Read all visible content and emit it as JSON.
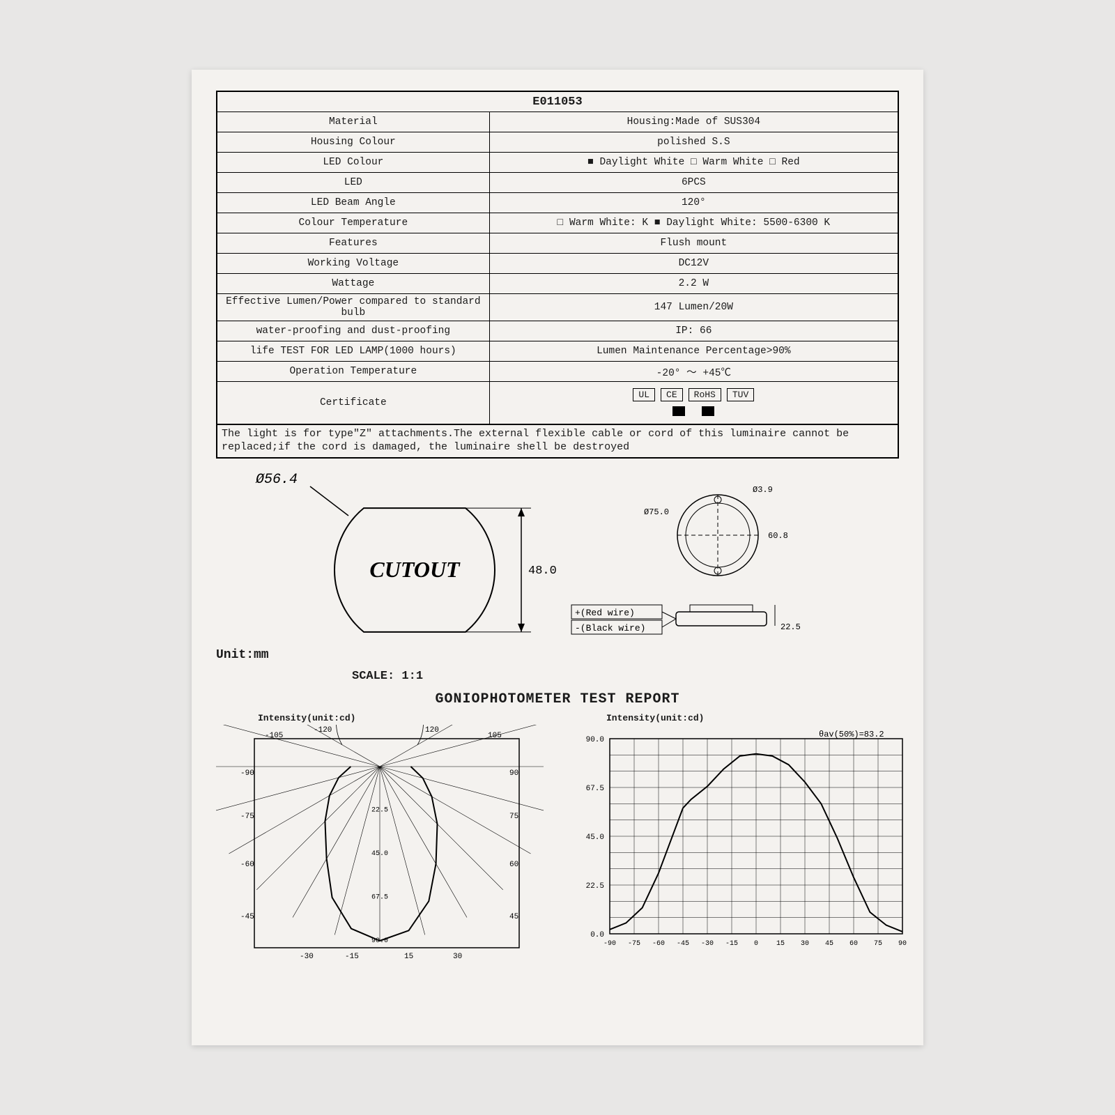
{
  "header": {
    "part_no": "E011053"
  },
  "spec_rows": [
    {
      "label": "Material",
      "value": "Housing:Made of SUS304",
      "type": "plain"
    },
    {
      "label": "Housing Colour",
      "value": "polished S.S",
      "type": "plain"
    },
    {
      "label": "LED Colour",
      "type": "checks",
      "options": [
        {
          "text": "Daylight White",
          "checked": true
        },
        {
          "text": "Warm White",
          "checked": false
        },
        {
          "text": "Red",
          "checked": false
        }
      ]
    },
    {
      "label": "LED",
      "value": "6PCS",
      "type": "plain"
    },
    {
      "label": "LED Beam Angle",
      "value": "120°",
      "type": "plain"
    },
    {
      "label": "Colour Temperature",
      "type": "checks",
      "options": [
        {
          "text": "Warm White:  K",
          "checked": false
        },
        {
          "text": "Daylight White: 5500-6300 K",
          "checked": true
        }
      ]
    },
    {
      "label": "Features",
      "value": "Flush mount",
      "type": "plain"
    },
    {
      "label": "Working Voltage",
      "value": "DC12V",
      "type": "plain"
    },
    {
      "label": "Wattage",
      "value": "2.2 W",
      "type": "plain"
    },
    {
      "label": "Effective Lumen/Power compared to standard bulb",
      "value": "147 Lumen/20W",
      "type": "plain"
    },
    {
      "label": "water-proofing and dust-proofing",
      "value": "IP: 66",
      "type": "plain"
    },
    {
      "label": "life TEST FOR LED LAMP(1000 hours)",
      "value": "Lumen Maintenance Percentage>90%",
      "type": "plain"
    },
    {
      "label": "Operation Temperature",
      "value": "-20° ～ +45℃",
      "type": "plain"
    }
  ],
  "certificate": {
    "label": "Certificate",
    "boxes": [
      "UL",
      "CE",
      "RoHS",
      "TUV"
    ],
    "filled": [
      false,
      true,
      true,
      false
    ]
  },
  "note": "The light is for type\"Z\" attachments.The external flexible cable or cord of this luminaire cannot be replaced;if the cord is damaged, the  luminaire shell be destroyed",
  "cutout": {
    "diameter_label": "Ø56.4",
    "text": "CUTOUT",
    "height_label": "48.0",
    "unit_label": "Unit:mm",
    "scale_label": "SCALE:   1:1"
  },
  "detail": {
    "outer_dia": "Ø75.0",
    "hole_dia": "Ø3.9",
    "inner_h": "60.8",
    "depth": "22.5",
    "wires": [
      {
        "label": "+(Red wire)"
      },
      {
        "label": "-(Black wire)"
      }
    ]
  },
  "gonio": {
    "title": "GONIOPHOTOMETER TEST REPORT",
    "polar": {
      "axis_label": "Intensity(unit:cd)",
      "angles_top": [
        "-105",
        "-120",
        "120",
        "105"
      ],
      "angles_side": [
        "-90",
        "-75",
        "-60",
        "-45",
        "90",
        "75",
        "60",
        "45"
      ],
      "angles_bottom": [
        "-30",
        "-15",
        "15",
        "30"
      ],
      "rings": [
        "22.5",
        "45.0",
        "67.5",
        "90.0"
      ],
      "curve_angles_deg": [
        -90,
        -75,
        -60,
        -45,
        -30,
        -20,
        -10,
        0,
        10,
        20,
        30,
        45,
        60,
        75,
        90
      ],
      "curve_radius": [
        15,
        22,
        30,
        40,
        55,
        72,
        85,
        90,
        86,
        74,
        58,
        42,
        31,
        23,
        16
      ]
    },
    "cartesian": {
      "axis_label": "Intensity(unit:cd)",
      "annotation": "θav(50%)=83.2",
      "x_ticks": [
        "-90",
        "-75",
        "-60",
        "-45",
        "-30",
        "-15",
        "0",
        "15",
        "30",
        "45",
        "60",
        "75",
        "90"
      ],
      "y_ticks": [
        "0.0",
        "22.5",
        "45.0",
        "67.5",
        "90.0"
      ],
      "x": [
        -90,
        -80,
        -70,
        -60,
        -50,
        -45,
        -40,
        -30,
        -20,
        -10,
        0,
        10,
        20,
        30,
        40,
        45,
        50,
        60,
        70,
        80,
        90
      ],
      "y": [
        2,
        5,
        12,
        28,
        48,
        58,
        62,
        68,
        76,
        82,
        83,
        82,
        78,
        70,
        60,
        52,
        44,
        26,
        10,
        4,
        1
      ]
    }
  },
  "style": {
    "ink": "#000000",
    "paper": "#f4f2ef",
    "bg": "#e8e7e6",
    "grid": "#444444",
    "font_mono": "Courier New"
  }
}
